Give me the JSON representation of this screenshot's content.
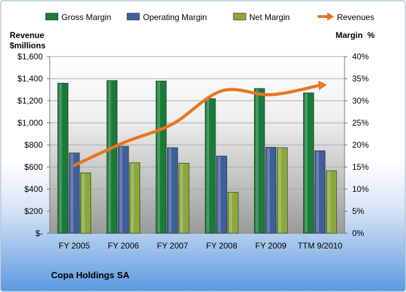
{
  "chart_data": {
    "type": "bar",
    "title": "",
    "company": "Copa Holdings SA",
    "categories": [
      "FY 2005",
      "FY 2006",
      "FY 2007",
      "FY 2008",
      "FY 2009",
      "TTM 9/2010"
    ],
    "series": [
      {
        "name": "Gross Margin",
        "axis": "right",
        "color": "#1a7a3a",
        "values": [
          34.0,
          34.6,
          34.5,
          30.5,
          32.8,
          31.8
        ]
      },
      {
        "name": "Operating Margin",
        "axis": "right",
        "color": "#3f5f9a",
        "values": [
          18.2,
          19.7,
          19.4,
          17.5,
          19.5,
          18.7
        ]
      },
      {
        "name": "Net Margin",
        "axis": "right",
        "color": "#8aa83c",
        "values": [
          13.7,
          16.0,
          15.9,
          9.3,
          19.4,
          14.2
        ]
      }
    ],
    "line_series": {
      "name": "Revenues",
      "axis": "left",
      "color": "#e8761e",
      "values": [
        615,
        820,
        990,
        1290,
        1255,
        1340
      ]
    },
    "left_axis": {
      "label_line1": "Revenue",
      "label_line2": "$millions",
      "ylim": [
        0,
        1600
      ],
      "ticks": [
        "$-",
        "$200",
        "$400",
        "$600",
        "$800",
        "$1,000",
        "$1,200",
        "$1,400",
        "$1,600"
      ]
    },
    "right_axis": {
      "label": "Margin  %",
      "ylim": [
        0,
        40
      ],
      "ticks": [
        "0%",
        "5%",
        "10%",
        "15%",
        "20%",
        "25%",
        "30%",
        "35%",
        "40%"
      ]
    },
    "legend": {
      "placement": "top",
      "entries": [
        "Gross Margin",
        "Operating Margin",
        "Net Margin",
        "Revenues"
      ]
    },
    "grid": true
  }
}
